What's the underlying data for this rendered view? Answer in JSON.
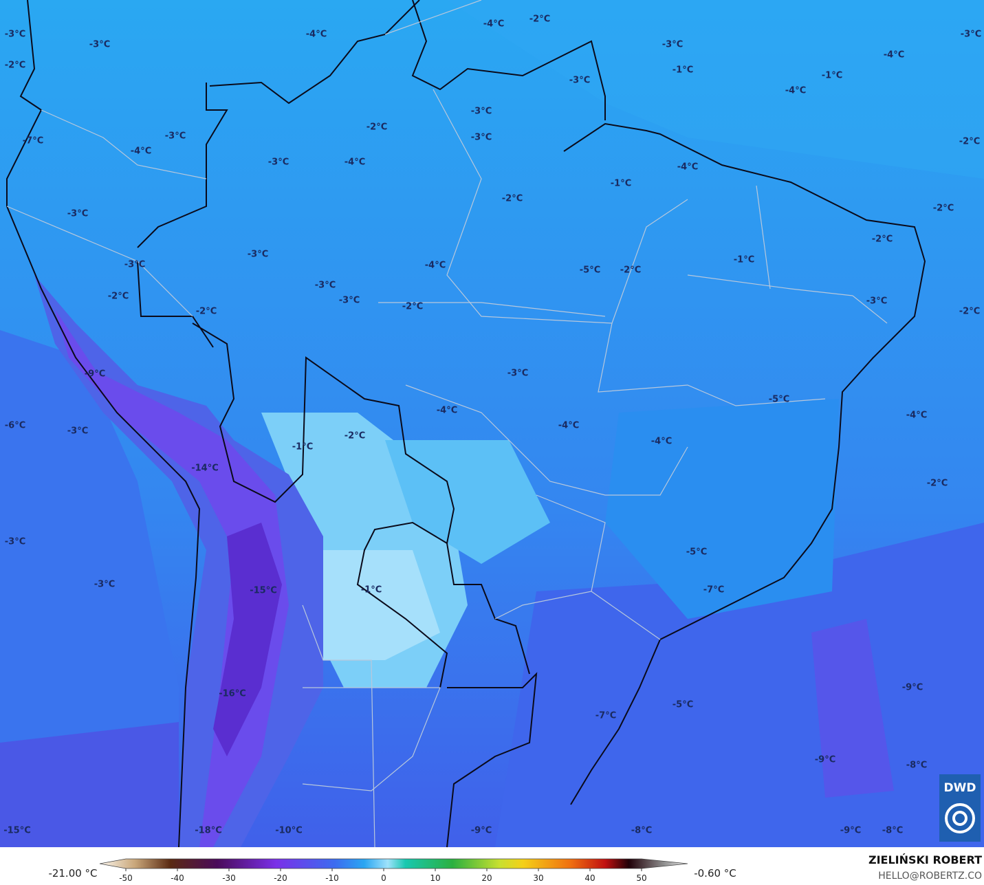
{
  "map": {
    "labels": [
      "-3°C",
      "-2°C",
      "-3°C",
      "-4°C",
      "-4°C",
      "-2°C",
      "-3°C",
      "-4°C",
      "-3°C",
      "-1°C",
      "-1°C",
      "-4°C",
      "-3°C",
      "-3°C",
      "-3°C",
      "-2°C",
      "-3°C",
      "-7°C",
      "-4°C",
      "-3°C",
      "-4°C",
      "-2°C",
      "-4°C",
      "-1°C",
      "-2°C",
      "-2°C",
      "-3°C",
      "-3°C",
      "-2°C",
      "-1°C",
      "-3°C",
      "-4°C",
      "-5°C",
      "-2°C",
      "-3°C",
      "-2°C",
      "-3°C",
      "-2°C",
      "-3°C",
      "-2°C",
      "-2°C",
      "-9°C",
      "-3°C",
      "-5°C",
      "-4°C",
      "-4°C",
      "-6°C",
      "-3°C",
      "-4°C",
      "-2°C",
      "-4°C",
      "-1°C",
      "-14°C",
      "-2°C",
      "-3°C",
      "-5°C",
      "-3°C",
      "-15°C",
      "-1°C",
      "-7°C",
      "-9°C",
      "-16°C",
      "-5°C",
      "-7°C",
      "-9°C",
      "-8°C",
      "-15°C",
      "-18°C",
      "-10°C",
      "-9°C",
      "-8°C",
      "-9°C",
      "-8°C"
    ]
  },
  "colorbar": {
    "ticks": [
      -50,
      -40,
      -30,
      -20,
      -10,
      0,
      10,
      20,
      30,
      40,
      50
    ],
    "min_label": "-21.00 °C",
    "max_label": "-0.60 °C"
  },
  "credit": {
    "name": "ZIELIŃSKI ROBERT",
    "email": "HELLO@ROBERTZ.CO"
  },
  "logo": "DWD"
}
